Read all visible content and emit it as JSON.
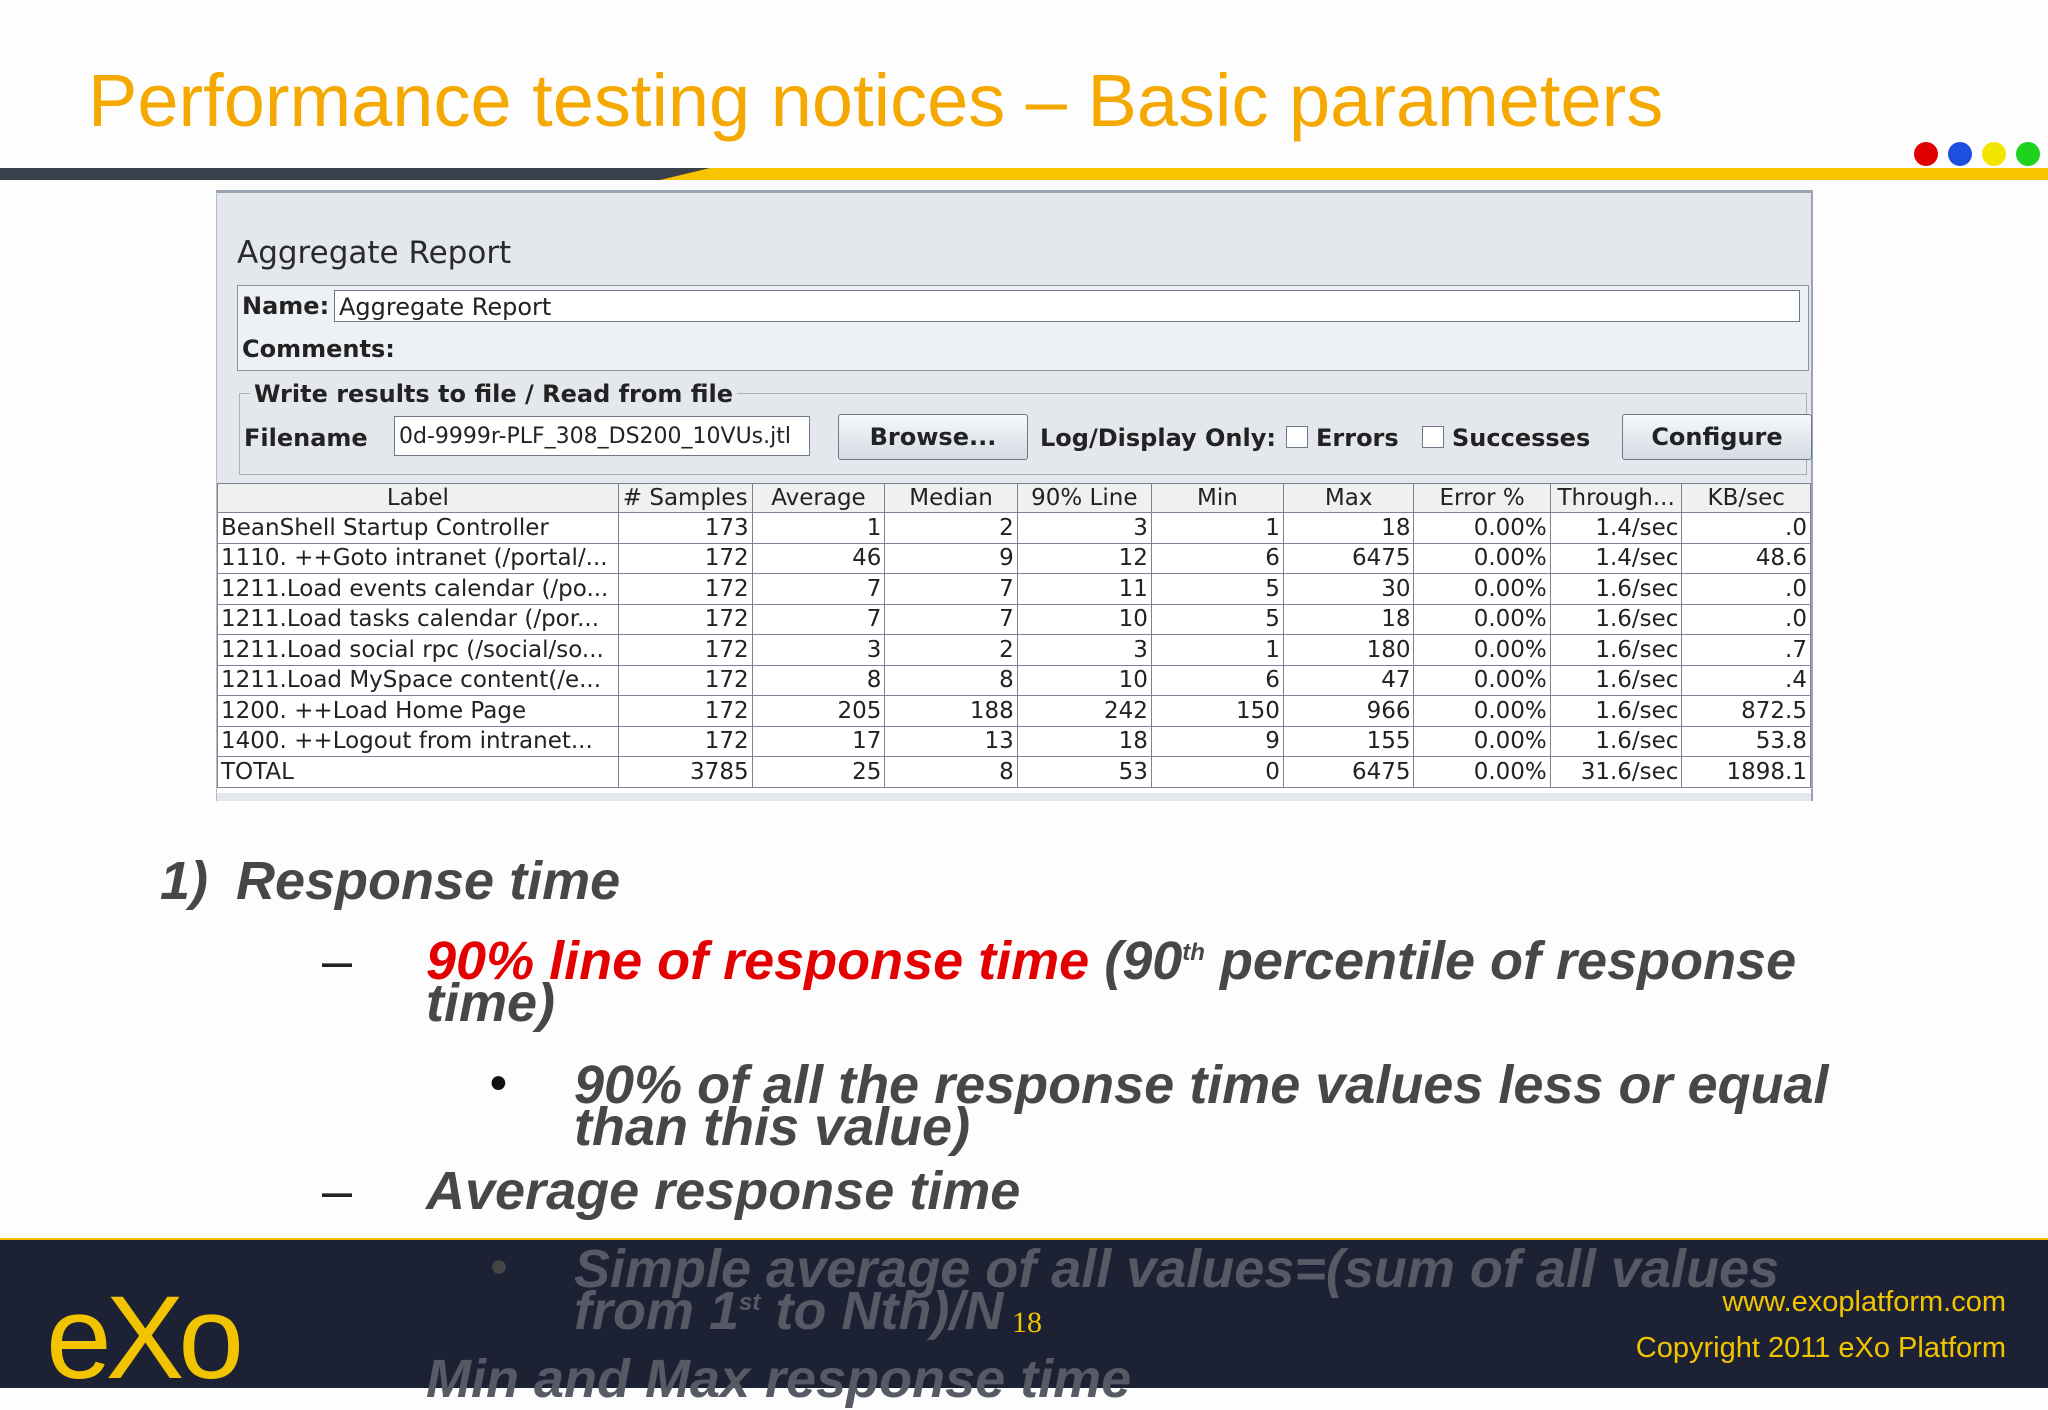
{
  "slide": {
    "title": "Performance testing notices – Basic parameters",
    "dots": [
      "#e00000",
      "#1e4fe0",
      "#f2e600",
      "#1fd21f"
    ]
  },
  "report": {
    "title": "Aggregate Report",
    "name_label": "Name:",
    "name_value": "Aggregate Report",
    "comments_label": "Comments:",
    "group_label": "Write results to file / Read from file",
    "filename_label": "Filename",
    "filename_value": "0d-9999r-PLF_308_DS200_10VUs.jtl",
    "browse_label": "Browse...",
    "logdisplay_label": "Log/Display Only:",
    "errors_label": "Errors",
    "successes_label": "Successes",
    "configure_label": "Configure",
    "columns": [
      "Label",
      "# Samples",
      "Average",
      "Median",
      "90% Line",
      "Min",
      "Max",
      "Error %",
      "Through...",
      "KB/sec"
    ],
    "rows": [
      [
        "BeanShell Startup Controller",
        "173",
        "1",
        "2",
        "3",
        "1",
        "18",
        "0.00%",
        "1.4/sec",
        ".0"
      ],
      [
        "1110. ++Goto intranet (/portal/...",
        "172",
        "46",
        "9",
        "12",
        "6",
        "6475",
        "0.00%",
        "1.4/sec",
        "48.6"
      ],
      [
        "1211.Load events calendar (/po...",
        "172",
        "7",
        "7",
        "11",
        "5",
        "30",
        "0.00%",
        "1.6/sec",
        ".0"
      ],
      [
        "1211.Load tasks calendar (/por...",
        "172",
        "7",
        "7",
        "10",
        "5",
        "18",
        "0.00%",
        "1.6/sec",
        ".0"
      ],
      [
        "1211.Load social rpc (/social/so...",
        "172",
        "3",
        "2",
        "3",
        "1",
        "180",
        "0.00%",
        "1.6/sec",
        ".7"
      ],
      [
        "1211.Load MySpace content(/e...",
        "172",
        "8",
        "8",
        "10",
        "6",
        "47",
        "0.00%",
        "1.6/sec",
        ".4"
      ],
      [
        "1200.   ++Load Home Page",
        "172",
        "205",
        "188",
        "242",
        "150",
        "966",
        "0.00%",
        "1.6/sec",
        "872.5"
      ],
      [
        "1400.   ++Logout from intranet...",
        "172",
        "17",
        "13",
        "18",
        "9",
        "155",
        "0.00%",
        "1.6/sec",
        "53.8"
      ],
      [
        "TOTAL",
        "3785",
        "25",
        "8",
        "53",
        "0",
        "6475",
        "0.00%",
        "31.6/sec",
        "1898.1"
      ]
    ]
  },
  "notes": {
    "heading_num": "1)",
    "heading": "Response time",
    "dash": "–",
    "item1_red": "90% line of response time",
    "item1_pre": " (90",
    "item1_sup": "th",
    "item1_rest": " percentile of response",
    "item1_line2": "time)",
    "bullet": "•",
    "bullet1_line1": "90% of all the response time values less or equal",
    "bullet1_line2": "than this value)",
    "item2": "Average response time",
    "bullet2_line1": "Simple average of all values=(sum of all values",
    "bullet2_line2_a": "from 1",
    "bullet2_line2_sup": "st",
    "bullet2_line2_b": "  to Nth)/N",
    "item3": "Min and Max response time"
  },
  "footer": {
    "logo": "eXo",
    "page_number": "18",
    "url": "www.exoplatform.com",
    "copyright": "Copyright 2011 eXo Platform"
  }
}
